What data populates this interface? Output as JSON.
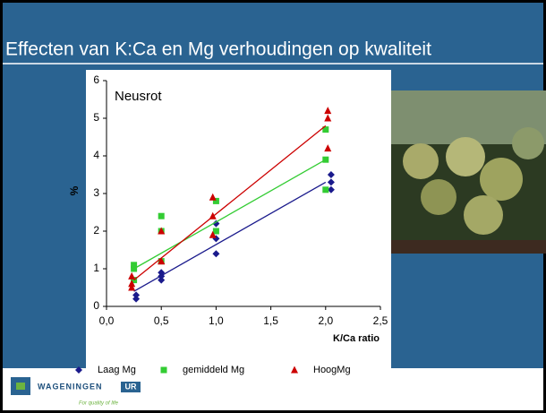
{
  "slide_title": "Effecten van K:Ca en Mg verhoudingen op kwaliteit",
  "logo": {
    "name": "WAGENINGEN",
    "badge": "UR",
    "tagline": "For quality of life"
  },
  "chart_data": {
    "type": "scatter",
    "title": "Neusrot",
    "ylabel": "%",
    "xlabel": "K/Ca ratio",
    "xlim": [
      0,
      2.5
    ],
    "ylim": [
      0,
      6
    ],
    "xticks": [
      {
        "value": 0,
        "label": "0,0"
      },
      {
        "value": 0.5,
        "label": "0,5"
      },
      {
        "value": 1,
        "label": "1,0"
      },
      {
        "value": 1.5,
        "label": "1,5"
      },
      {
        "value": 2,
        "label": "2,0"
      },
      {
        "value": 2.5,
        "label": "2,5"
      }
    ],
    "yticks": [
      0,
      1,
      2,
      3,
      4,
      5,
      6
    ],
    "series": [
      {
        "name": "Laag Mg",
        "color": "#1a1a8c",
        "marker": "diamond",
        "x": [
          0.27,
          0.27,
          0.5,
          0.5,
          0.5,
          1.0,
          1.0,
          1.0,
          2.05,
          2.05,
          2.05
        ],
        "values": [
          0.3,
          0.2,
          0.9,
          0.8,
          0.7,
          2.2,
          1.8,
          1.4,
          3.5,
          3.3,
          3.1
        ],
        "trend": [
          [
            0.25,
            0.4
          ],
          [
            2.0,
            3.3
          ]
        ]
      },
      {
        "name": "gemiddeld Mg",
        "color": "#33cc33",
        "marker": "square",
        "x": [
          0.25,
          0.25,
          0.25,
          0.5,
          0.5,
          0.5,
          1.0,
          1.0,
          2.0,
          2.0,
          2.0
        ],
        "values": [
          1.1,
          1.0,
          0.7,
          2.4,
          2.0,
          1.2,
          2.8,
          2.0,
          4.7,
          3.9,
          3.1
        ],
        "trend": [
          [
            0.25,
            1.0
          ],
          [
            2.0,
            3.9
          ]
        ]
      },
      {
        "name": "HoogMg",
        "color": "#cc0000",
        "marker": "triangle",
        "x": [
          0.23,
          0.23,
          0.23,
          0.5,
          0.5,
          0.5,
          0.97,
          0.97,
          0.97,
          2.02,
          2.02,
          2.02
        ],
        "values": [
          0.8,
          0.6,
          0.5,
          2.0,
          1.2,
          1.2,
          2.9,
          2.4,
          1.9,
          5.2,
          5.0,
          4.2
        ],
        "trend": [
          [
            0.25,
            0.7
          ],
          [
            2.0,
            4.8
          ]
        ]
      }
    ]
  }
}
